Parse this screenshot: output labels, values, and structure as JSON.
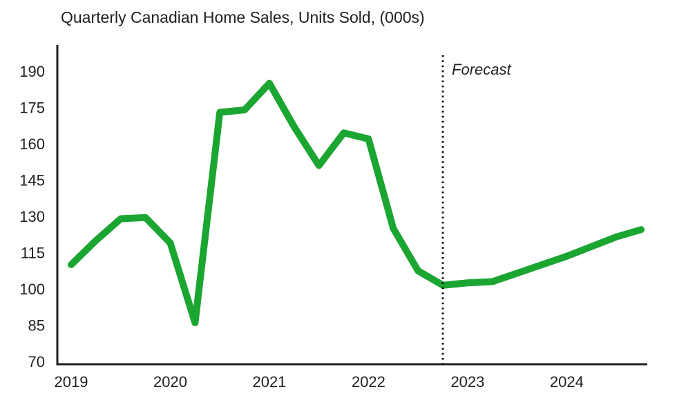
{
  "colors": {
    "background": "#ffffff",
    "line": "#1ba531",
    "axis": "#1f1f1f",
    "text": "#1f1f1f",
    "forecast_divider": "#111111"
  },
  "chart_data": {
    "type": "line",
    "title": "Quarterly Canadian Home Sales, Units Sold, (000s)",
    "xlabel": "",
    "ylabel": "",
    "x": [
      "2019 Q1",
      "2019 Q2",
      "2019 Q3",
      "2019 Q4",
      "2020 Q1",
      "2020 Q2",
      "2020 Q3",
      "2020 Q4",
      "2021 Q1",
      "2021 Q2",
      "2021 Q3",
      "2021 Q4",
      "2022 Q1",
      "2022 Q2",
      "2022 Q3",
      "2022 Q4",
      "2023 Q1",
      "2023 Q2",
      "2023 Q3",
      "2023 Q4",
      "2024 Q1",
      "2024 Q2",
      "2024 Q3",
      "2024 Q4"
    ],
    "series": [
      {
        "name": "Quarterly Canadian home sales, units sold (000s)",
        "values": [
          110,
          120,
          129,
          129.5,
          119,
          86,
          173,
          174,
          185,
          167,
          151,
          164.5,
          162,
          125,
          107.5,
          101.5,
          102.5,
          103,
          106.5,
          110,
          113.5,
          117.5,
          121.5,
          124.5
        ]
      }
    ],
    "xticks": [
      "2019",
      "2020",
      "2021",
      "2022",
      "2023",
      "2024"
    ],
    "yticks": [
      70,
      85,
      100,
      115,
      130,
      145,
      160,
      175,
      190
    ],
    "ylim": [
      70,
      198
    ],
    "grid": false,
    "legend": "none",
    "forecast_label": "Forecast",
    "forecast_start": "2022 Q4",
    "annotations": [
      {
        "type": "vline",
        "x": "2022 Q4",
        "style": "dotted",
        "label": "Forecast"
      }
    ]
  }
}
